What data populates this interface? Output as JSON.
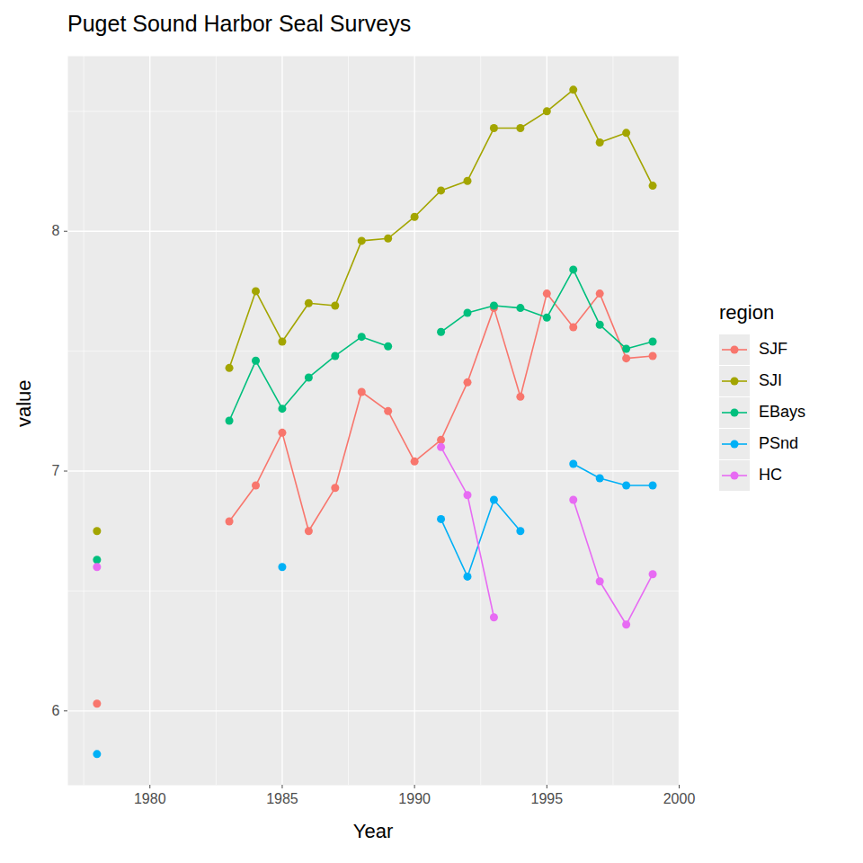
{
  "chart_data": {
    "type": "line",
    "title": "Puget Sound Harbor Seal Surveys",
    "x_label": "Year",
    "y_label": "value",
    "legend_title": "region",
    "x": [
      1978,
      1979,
      1980,
      1981,
      1982,
      1983,
      1984,
      1985,
      1986,
      1987,
      1988,
      1989,
      1990,
      1991,
      1992,
      1993,
      1994,
      1995,
      1996,
      1997,
      1998,
      1999
    ],
    "series": [
      {
        "name": "SJF",
        "color": "#F8766D",
        "values": [
          6.03,
          null,
          null,
          null,
          null,
          6.79,
          6.94,
          7.16,
          6.75,
          6.93,
          7.33,
          7.25,
          7.04,
          7.13,
          7.37,
          7.68,
          7.31,
          7.74,
          7.6,
          7.74,
          7.47,
          7.48
        ]
      },
      {
        "name": "SJI",
        "color": "#A3A500",
        "values": [
          6.75,
          null,
          null,
          null,
          null,
          7.43,
          7.75,
          7.54,
          7.7,
          7.69,
          7.96,
          7.97,
          8.06,
          8.17,
          8.21,
          8.43,
          8.43,
          8.5,
          8.59,
          8.37,
          8.41,
          8.19
        ]
      },
      {
        "name": "EBays",
        "color": "#00BF7D",
        "values": [
          6.63,
          null,
          null,
          null,
          null,
          7.21,
          7.46,
          7.26,
          7.39,
          7.48,
          7.56,
          7.52,
          null,
          7.58,
          7.66,
          7.69,
          7.68,
          7.64,
          7.84,
          7.61,
          7.51,
          7.54
        ]
      },
      {
        "name": "PSnd",
        "color": "#00B0F6",
        "values": [
          5.82,
          null,
          null,
          null,
          null,
          null,
          null,
          6.6,
          null,
          null,
          null,
          null,
          null,
          6.8,
          6.56,
          6.88,
          6.75,
          null,
          7.03,
          6.97,
          6.94,
          6.94
        ]
      },
      {
        "name": "HC",
        "color": "#E76BF3",
        "values": [
          6.6,
          null,
          null,
          null,
          null,
          null,
          null,
          null,
          null,
          null,
          null,
          null,
          null,
          7.1,
          6.9,
          6.39,
          null,
          null,
          6.88,
          6.54,
          6.36,
          6.57
        ]
      }
    ],
    "xlim": [
      1976.9,
      2000
    ],
    "xticks": [
      1980,
      1985,
      1990,
      1995,
      2000
    ],
    "ylim": [
      5.69,
      8.73
    ],
    "yticks": [
      6,
      7,
      8
    ],
    "grid": true,
    "legend": "right",
    "marker": "circle",
    "line_style": "solid"
  }
}
